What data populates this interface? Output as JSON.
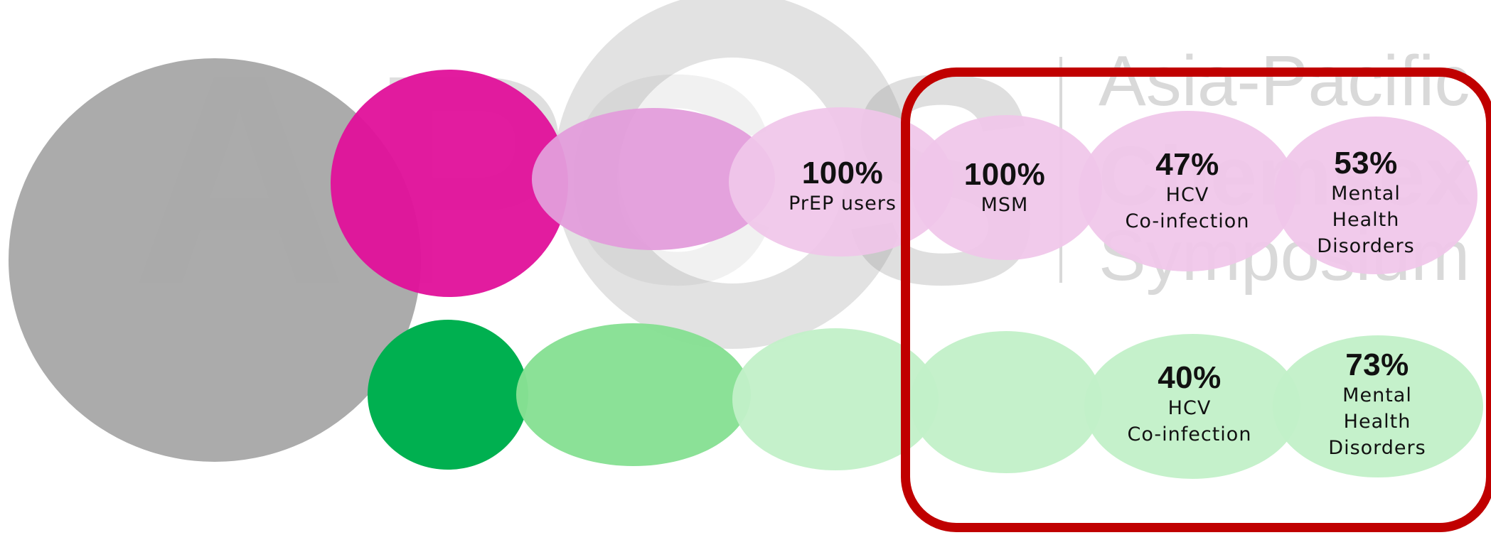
{
  "watermark": {
    "letters": [
      "A",
      "P",
      "C",
      "S"
    ],
    "line1": "Asia-Pacific",
    "line2": "Chemsex",
    "line3": "Symposium",
    "color": "#d9d9d9"
  },
  "colors": {
    "gray": "#a6a6a6",
    "magenta": "#e0109a",
    "magenta_light": "#e39ddb",
    "pink_pale": "#f0c6ea",
    "green": "#00b050",
    "green_light": "#87e094",
    "green_pale": "#c2f0c8",
    "frame": "#c00000"
  },
  "top_row": [
    {
      "pct": "100%",
      "lines": [
        "PrEP users"
      ]
    },
    {
      "pct": "100%",
      "lines": [
        "MSM"
      ]
    },
    {
      "pct": "47%",
      "lines": [
        "HCV",
        "Co-infection"
      ]
    },
    {
      "pct": "53%",
      "lines": [
        "Mental",
        "Health",
        "Disorders"
      ]
    }
  ],
  "bottom_row": [
    {
      "pct": "40%",
      "lines": [
        "HCV",
        "Co-infection"
      ]
    },
    {
      "pct": "73%",
      "lines": [
        "Mental",
        "Health",
        "Disorders"
      ]
    }
  ]
}
